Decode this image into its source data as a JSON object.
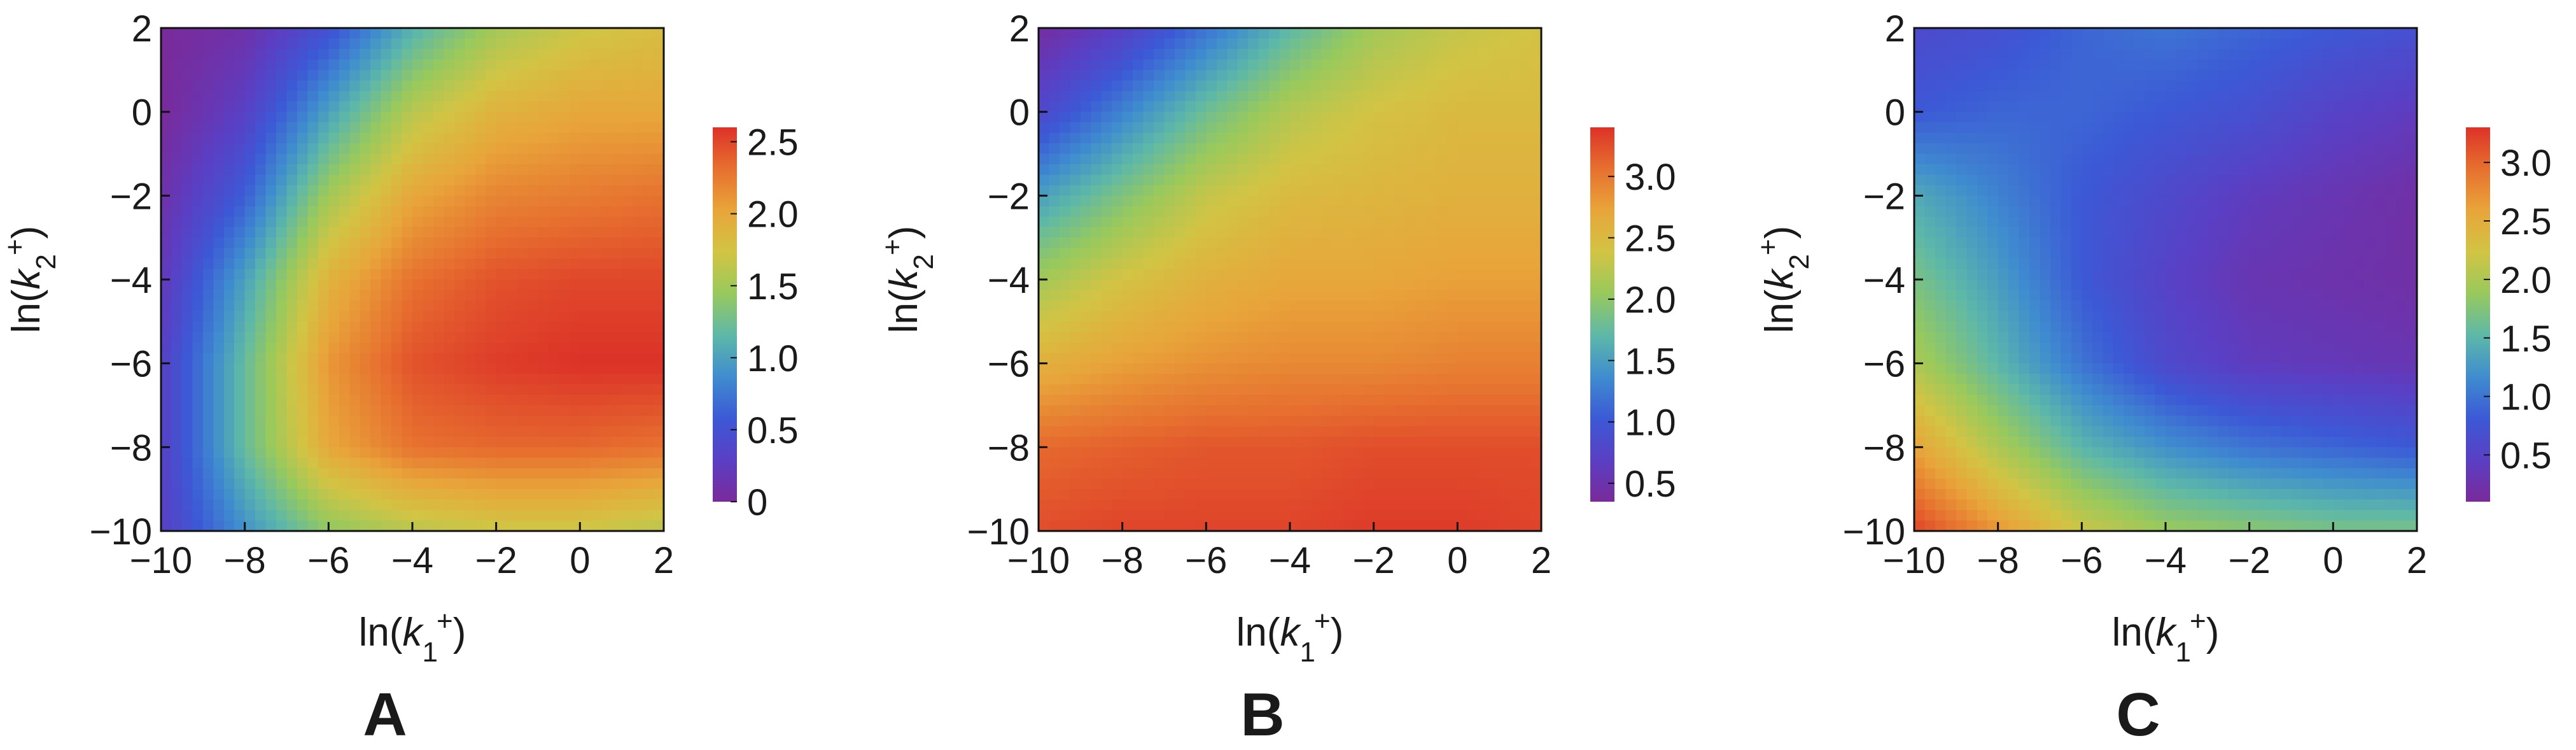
{
  "figure": {
    "panels": [
      "A",
      "B",
      "C"
    ]
  },
  "colormap": [
    "#7a2a9a",
    "#5a3fc4",
    "#3c59d6",
    "#3f8ccf",
    "#5eb8a8",
    "#98c95d",
    "#d2c444",
    "#e8a53a",
    "#e7702f",
    "#dc3228"
  ],
  "chart_data": [
    {
      "type": "heatmap",
      "panel_label": "A",
      "title": "",
      "xlabel": "ln(k1+)",
      "ylabel": "ln(k2+)",
      "xlim": [
        -10,
        2
      ],
      "ylim": [
        -10,
        2
      ],
      "xticks": [
        "−10",
        "−8",
        "−6",
        "−4",
        "−2",
        "0",
        "2"
      ],
      "yticks": [
        "−10",
        "−8",
        "−6",
        "−4",
        "−2",
        "0",
        "2"
      ],
      "x": [
        -10,
        -8,
        -6,
        -4,
        -2,
        0,
        2
      ],
      "y": [
        2,
        0,
        -2,
        -4,
        -6,
        -8,
        -10
      ],
      "z": [
        [
          0.0,
          0.1,
          0.5,
          1.1,
          1.5,
          1.7,
          1.8
        ],
        [
          0.0,
          0.3,
          1.0,
          1.6,
          1.9,
          2.0,
          2.0
        ],
        [
          0.1,
          0.6,
          1.5,
          2.0,
          2.2,
          2.25,
          2.3
        ],
        [
          0.2,
          1.0,
          1.9,
          2.3,
          2.45,
          2.5,
          2.5
        ],
        [
          0.3,
          1.2,
          2.1,
          2.45,
          2.55,
          2.6,
          2.6
        ],
        [
          0.3,
          1.2,
          2.0,
          2.3,
          2.35,
          2.35,
          2.3
        ],
        [
          0.3,
          0.9,
          1.4,
          1.6,
          1.7,
          1.7,
          1.6
        ]
      ],
      "colorbar": {
        "ticks": [
          "0",
          "0.5",
          "1.0",
          "1.5",
          "2.0",
          "2.5"
        ],
        "tick_values": [
          0,
          0.5,
          1.0,
          1.5,
          2.0,
          2.5
        ],
        "range": [
          0,
          2.6
        ]
      }
    },
    {
      "type": "heatmap",
      "panel_label": "B",
      "title": "",
      "xlabel": "ln(k1+)",
      "ylabel": "ln(k2+)",
      "xlim": [
        -10,
        2
      ],
      "ylim": [
        -10,
        2
      ],
      "xticks": [
        "−10",
        "−8",
        "−6",
        "−4",
        "−2",
        "0",
        "2"
      ],
      "yticks": [
        "−10",
        "−8",
        "−6",
        "−4",
        "−2",
        "0",
        "2"
      ],
      "x": [
        -10,
        -8,
        -6,
        -4,
        -2,
        0,
        2
      ],
      "y": [
        2,
        0,
        -2,
        -4,
        -6,
        -8,
        -10
      ],
      "z": [
        [
          0.4,
          0.7,
          1.2,
          1.7,
          2.1,
          2.3,
          2.4
        ],
        [
          0.8,
          1.3,
          1.8,
          2.2,
          2.4,
          2.5,
          2.5
        ],
        [
          1.5,
          1.9,
          2.3,
          2.5,
          2.55,
          2.6,
          2.6
        ],
        [
          2.1,
          2.4,
          2.6,
          2.7,
          2.7,
          2.75,
          2.75
        ],
        [
          2.6,
          2.75,
          2.85,
          2.9,
          2.9,
          2.95,
          2.95
        ],
        [
          3.1,
          3.15,
          3.2,
          3.2,
          3.25,
          3.25,
          3.25
        ],
        [
          3.25,
          3.3,
          3.3,
          3.3,
          3.35,
          3.35,
          3.3
        ]
      ],
      "colorbar": {
        "ticks": [
          "0.5",
          "1.0",
          "1.5",
          "2.0",
          "2.5",
          "3.0"
        ],
        "tick_values": [
          0.5,
          1.0,
          1.5,
          2.0,
          2.5,
          3.0
        ],
        "range": [
          0.35,
          3.4
        ]
      }
    },
    {
      "type": "heatmap",
      "panel_label": "C",
      "title": "",
      "xlabel": "ln(k1+)",
      "ylabel": "ln(k2+)",
      "xlim": [
        -10,
        2
      ],
      "ylim": [
        -10,
        2
      ],
      "xticks": [
        "−10",
        "−8",
        "−6",
        "−4",
        "−2",
        "0",
        "2"
      ],
      "yticks": [
        "−10",
        "−8",
        "−6",
        "−4",
        "−2",
        "0",
        "2"
      ],
      "x": [
        -10,
        -8,
        -6,
        -4,
        -2,
        0,
        2
      ],
      "y": [
        2,
        0,
        -2,
        -4,
        -6,
        -8,
        -10
      ],
      "z": [
        [
          0.6,
          0.7,
          0.9,
          1.0,
          0.9,
          0.8,
          0.7
        ],
        [
          0.8,
          0.9,
          0.9,
          0.8,
          0.7,
          0.5,
          0.4
        ],
        [
          1.4,
          1.1,
          0.8,
          0.6,
          0.4,
          0.3,
          0.2
        ],
        [
          1.7,
          1.3,
          0.8,
          0.5,
          0.3,
          0.25,
          0.2
        ],
        [
          2.0,
          1.5,
          1.0,
          0.6,
          0.4,
          0.35,
          0.3
        ],
        [
          2.6,
          2.0,
          1.5,
          1.2,
          1.0,
          0.9,
          0.8
        ],
        [
          3.2,
          2.7,
          2.2,
          1.9,
          1.8,
          1.7,
          1.7
        ]
      ],
      "colorbar": {
        "ticks": [
          "0.5",
          "1.0",
          "1.5",
          "2.0",
          "2.5",
          "3.0"
        ],
        "tick_values": [
          0.5,
          1.0,
          1.5,
          2.0,
          2.5,
          3.0
        ],
        "range": [
          0.1,
          3.3
        ]
      }
    }
  ]
}
